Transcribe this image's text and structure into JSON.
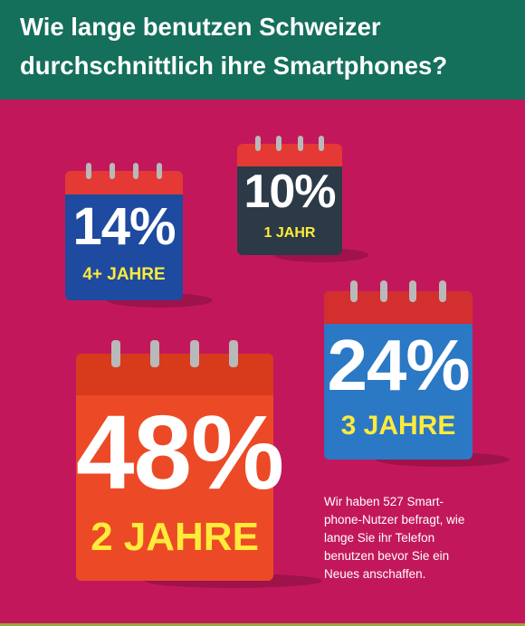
{
  "title": "Wie lange benutzen Schweizer durchschnittlich ihre Smartphones?",
  "colors": {
    "background": "#c2185b",
    "header": "#146f5b",
    "pct_text": "#ffffff",
    "label_highlight": "#ffeb3b",
    "label_plain": "#ffffff"
  },
  "chart_data": {
    "type": "pictogram",
    "title": "Wie lange benutzen Schweizer durchschnittlich ihre Smartphones?",
    "unit": "%",
    "categories": [
      "4+ JAHRE",
      "1 JAHR",
      "3 JAHRE",
      "2 JAHRE"
    ],
    "values": [
      14,
      10,
      24,
      48
    ],
    "items": [
      {
        "pct": "14%",
        "label": "4+ JAHRE",
        "value": 14,
        "body_color": "#1e4aa0",
        "band_color": "#e53935",
        "label_color": "#ffeb3b"
      },
      {
        "pct": "10%",
        "label": "1 JAHR",
        "value": 10,
        "body_color": "#2b3a46",
        "band_color": "#e53935",
        "label_color": "#ffeb3b"
      },
      {
        "pct": "24%",
        "label": "3 JAHRE",
        "value": 24,
        "body_color": "#2b78c5",
        "band_color": "#d32f2f",
        "label_color": "#ffeb3b"
      },
      {
        "pct": "48%",
        "label": "2 JAHRE",
        "value": 48,
        "body_color": "#ec4a26",
        "band_color": "#d83a1c",
        "label_color": "#ffeb3b"
      }
    ]
  },
  "note": "Wir haben 527 Smart-\nphone-Nutzer befragt, wie\nlange Sie ihr Telefon\nbenutzen bevor Sie ein\nNeues anschaffen."
}
